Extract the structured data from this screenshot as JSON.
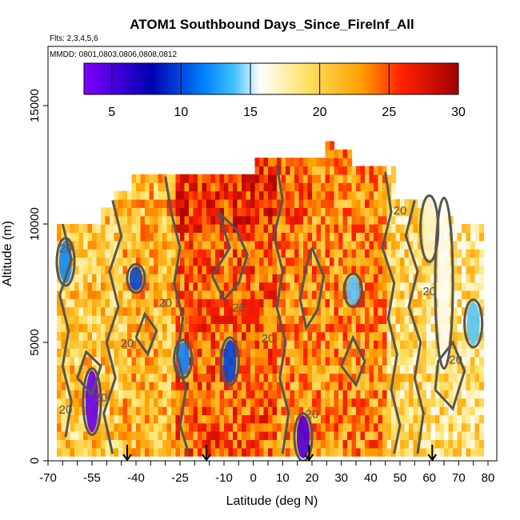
{
  "chart_data": {
    "type": "heatmap",
    "title": "ATOM1 Southbound Days_Since_FireInf_All",
    "flights_note": "Flts: 2,3,4,5,6",
    "dates_note": "MMDD: 0801,0803,0806,0808,0812",
    "xlabel": "Latitude (deg N)",
    "ylabel": "Altitude (m)",
    "xlim": [
      -70,
      83
    ],
    "ylim": [
      0,
      17500
    ],
    "x_ticks": [
      -70,
      -55,
      -40,
      -25,
      -10,
      0,
      10,
      20,
      30,
      40,
      50,
      60,
      70,
      80
    ],
    "y_ticks": [
      0,
      5000,
      10000,
      15000
    ],
    "colorbar": {
      "range": [
        3,
        30
      ],
      "ticks": [
        5,
        10,
        15,
        20,
        25,
        30
      ],
      "colors": [
        "#7f00ff",
        "#0000b0",
        "#0080ff",
        "#00c0ff",
        "#ffffff",
        "#ffe060",
        "#ffa000",
        "#ff2000",
        "#a00000"
      ]
    },
    "contour_labels": [
      {
        "text": "20",
        "x": 20,
        "y": 1800
      },
      {
        "text": "20",
        "x": -30,
        "y": 6500
      },
      {
        "text": "20",
        "x": -43,
        "y": 4800
      },
      {
        "text": "25",
        "x": -5,
        "y": 6300
      },
      {
        "text": "20",
        "x": 69,
        "y": 4100
      },
      {
        "text": "20",
        "x": 60,
        "y": 7000
      },
      {
        "text": "20",
        "x": 50,
        "y": 10400
      },
      {
        "text": "20",
        "x": -64,
        "y": 8800
      },
      {
        "text": "20",
        "x": -64,
        "y": 2000
      },
      {
        "text": "20",
        "x": -52,
        "y": 2500
      },
      {
        "text": "20",
        "x": 5,
        "y": 5000
      },
      {
        "text": "25",
        "x": -40,
        "y": 7700
      }
    ],
    "arrows_x": [
      -43,
      -16,
      19,
      61
    ],
    "grid": false,
    "legend": "colorbar-top-inside"
  }
}
